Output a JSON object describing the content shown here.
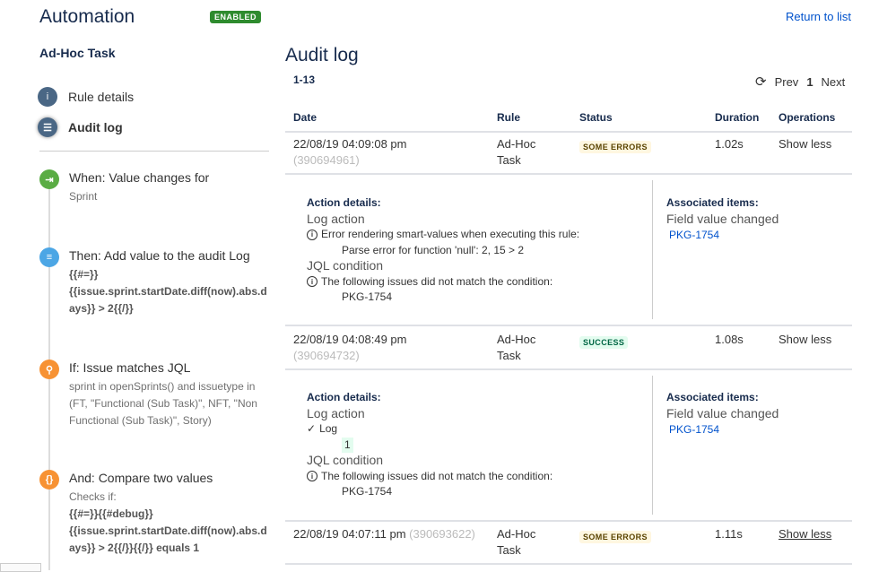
{
  "sidebar": {
    "title": "Automation",
    "status": "ENABLED",
    "rule_name": "Ad-Hoc Task",
    "nav": [
      {
        "label": "Rule details",
        "icon": "info-icon"
      },
      {
        "label": "Audit log",
        "icon": "list-icon"
      }
    ],
    "steps": [
      {
        "heading": "When: Value changes for",
        "detail": "Sprint",
        "icon": "trigger-icon",
        "color": "#5aac44"
      },
      {
        "heading": "Then: Add value to the audit Log",
        "detail": "{{#=}}\n{{issue.sprint.startDate.diff(now).abs.days}} > 2{{/}}",
        "icon": "log-icon",
        "color": "#4ca6e5"
      },
      {
        "heading": "If: Issue matches JQL",
        "detail": "sprint in openSprints() and issuetype in (FT, \"Functional (Sub Task)\", NFT, \"Non Functional (Sub Task)\", Story)",
        "icon": "search-icon",
        "color": "#f79233"
      },
      {
        "heading": "And: Compare two values",
        "detail_prefix": "Checks if:",
        "detail": "{{#=}}{{#debug}}\n{{issue.sprint.startDate.diff(now).abs.days}} > 2{{/}}{{/}} equals 1",
        "icon": "braces-icon",
        "color": "#f79233"
      }
    ]
  },
  "header": {
    "return_link": "Return to list"
  },
  "main": {
    "title": "Audit log",
    "range": "1-13",
    "pager": {
      "prev": "Prev",
      "page": "1",
      "next": "Next"
    },
    "columns": [
      "Date",
      "Rule",
      "Status",
      "Duration",
      "Operations"
    ],
    "rows": [
      {
        "date": "22/08/19 04:09:08 pm",
        "id": "(390694961)",
        "rule": "Ad-Hoc Task",
        "status": "SOME ERRORS",
        "duration": "1.02s",
        "op": "Show less",
        "details": {
          "label": "Action details:",
          "log_title": "Log action",
          "log_msg": "Error rendering smart-values when executing this rule:",
          "log_sub": "Parse error for function 'null': 2, 15 > 2",
          "jql_title": "JQL condition",
          "jql_msg": "The following issues did not match the condition:",
          "jql_sub": "PKG-1754",
          "assoc_label": "Associated items:",
          "assoc_title": "Field value changed",
          "assoc_link": "PKG-1754"
        }
      },
      {
        "date": "22/08/19 04:08:49 pm",
        "id": "(390694732)",
        "rule": "Ad-Hoc Task",
        "status": "SUCCESS",
        "duration": "1.08s",
        "op": "Show less",
        "details": {
          "label": "Action details:",
          "log_title": "Log action",
          "log_msg": "Log",
          "log_sub": "1",
          "jql_title": "JQL condition",
          "jql_msg": "The following issues did not match the condition:",
          "jql_sub": "PKG-1754",
          "assoc_label": "Associated items:",
          "assoc_title": "Field value changed",
          "assoc_link": "PKG-1754"
        }
      },
      {
        "date": "22/08/19 04:07:11 pm",
        "id": "(390693622)",
        "rule": "Ad-Hoc Task",
        "status": "SOME ERRORS",
        "duration": "1.11s",
        "op": "Show less"
      }
    ]
  }
}
